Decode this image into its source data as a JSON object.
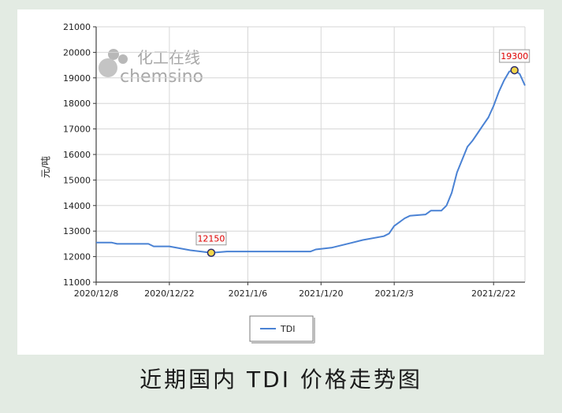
{
  "caption": "近期国内 TDI 价格走势图",
  "watermark": {
    "cn": "化工在线",
    "en": "chemsino"
  },
  "chart_data": {
    "type": "line",
    "title": "",
    "ylabel": "元/吨",
    "xlabel": "",
    "ylim": [
      11000,
      21000
    ],
    "yticks": [
      11000,
      12000,
      13000,
      14000,
      15000,
      16000,
      17000,
      18000,
      19000,
      20000,
      21000
    ],
    "xticks": [
      "2020/12/8",
      "2020/12/22",
      "2021/1/6",
      "2021/1/20",
      "2021/2/3",
      "2021/2/22"
    ],
    "xtick_days": [
      0,
      14,
      29,
      43,
      57,
      76
    ],
    "grid": true,
    "legend": {
      "position": "bottom-center"
    },
    "series": [
      {
        "name": "TDI",
        "color": "#4a82d4",
        "points": [
          [
            0,
            12550
          ],
          [
            3,
            12550
          ],
          [
            4,
            12500
          ],
          [
            10,
            12500
          ],
          [
            11,
            12400
          ],
          [
            14,
            12400
          ],
          [
            18,
            12250
          ],
          [
            22,
            12150
          ],
          [
            25,
            12200
          ],
          [
            35,
            12200
          ],
          [
            41,
            12200
          ],
          [
            42,
            12280
          ],
          [
            45,
            12350
          ],
          [
            49,
            12550
          ],
          [
            51,
            12650
          ],
          [
            55,
            12800
          ],
          [
            56,
            12900
          ],
          [
            57,
            13200
          ],
          [
            59,
            13500
          ],
          [
            60,
            13600
          ],
          [
            63,
            13650
          ],
          [
            64,
            13800
          ],
          [
            66,
            13800
          ],
          [
            67,
            14000
          ],
          [
            68,
            14500
          ],
          [
            69,
            15300
          ],
          [
            70,
            15800
          ],
          [
            71,
            16300
          ],
          [
            72,
            16550
          ],
          [
            73,
            16850
          ],
          [
            74,
            17150
          ],
          [
            75,
            17450
          ],
          [
            76,
            17900
          ],
          [
            77,
            18450
          ],
          [
            78,
            18900
          ],
          [
            79,
            19250
          ],
          [
            80,
            19300
          ],
          [
            81,
            19150
          ],
          [
            82,
            18700
          ]
        ]
      }
    ],
    "annotations": [
      {
        "label": "12150",
        "x": 22,
        "y": 12150
      },
      {
        "label": "19300",
        "x": 80,
        "y": 19300
      }
    ]
  }
}
